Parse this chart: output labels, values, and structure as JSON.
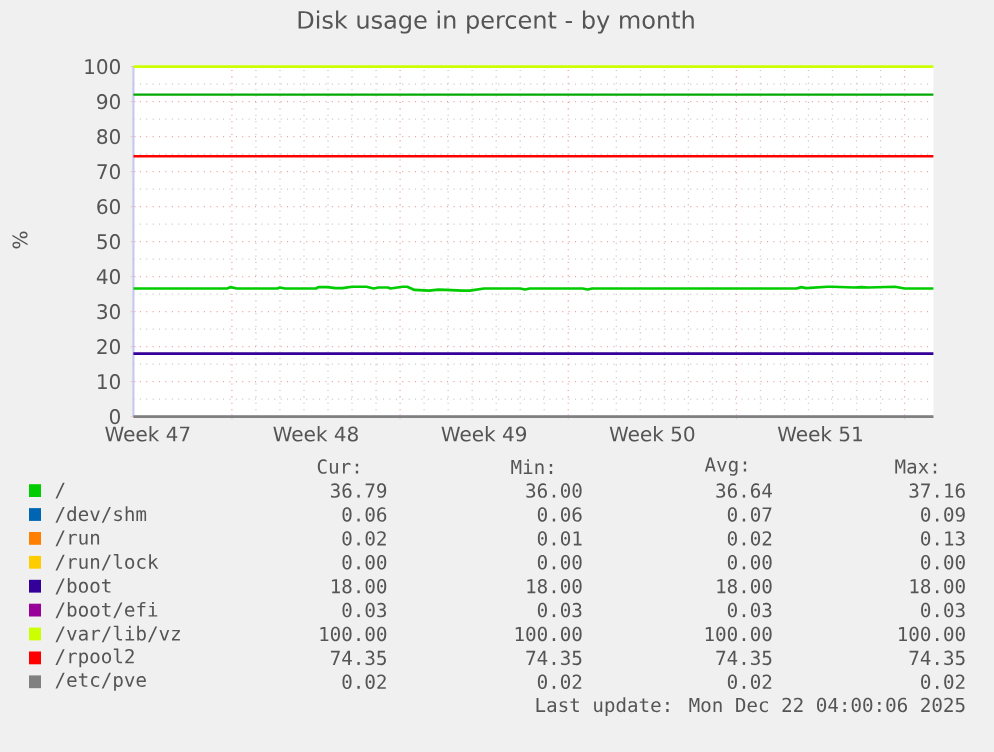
{
  "chart_data": {
    "type": "line",
    "title": "Disk usage in percent - by month",
    "ylabel": "%",
    "xlim": [
      "2025-11-19T21:36",
      "2025-12-23T04:48"
    ],
    "ylim": [
      0,
      100
    ],
    "xticks": [
      {
        "value": "2025-11-20T12:00",
        "label": "Week 47"
      },
      {
        "value": "2025-11-24",
        "label": null
      },
      {
        "value": "2025-11-27T12:00",
        "label": "Week 48"
      },
      {
        "value": "2025-12-01",
        "label": null
      },
      {
        "value": "2025-12-04T12:00",
        "label": "Week 49"
      },
      {
        "value": "2025-12-08",
        "label": null
      },
      {
        "value": "2025-12-11T12:00",
        "label": "Week 50"
      },
      {
        "value": "2025-12-15",
        "label": null
      },
      {
        "value": "2025-12-18T12:00",
        "label": "Week 51"
      },
      {
        "value": "2025-12-22",
        "label": null
      }
    ],
    "yticks": [
      0,
      10,
      20,
      30,
      40,
      50,
      60,
      70,
      80,
      90,
      100
    ],
    "grid": true,
    "legend": "bottom",
    "series": [
      {
        "name": "/",
        "color": "#00cc00",
        "x": [
          "2025-11-19T21:36",
          "2025-11-23T19:12",
          "2025-11-23T22:48",
          "2025-11-24T04:48",
          "2025-11-25T21:36",
          "2025-11-26T00:00",
          "2025-11-26T04:48",
          "2025-11-27T12:00",
          "2025-11-27T14:24",
          "2025-11-28T00:00",
          "2025-11-28T07:12",
          "2025-11-28T14:24",
          "2025-11-29T00:00",
          "2025-11-29T14:24",
          "2025-11-29T21:36",
          "2025-11-30T02:24",
          "2025-11-30T12:00",
          "2025-11-30T14:24",
          "2025-12-01T02:24",
          "2025-12-01T07:12",
          "2025-12-01T14:24",
          "2025-12-02T04:48",
          "2025-12-02T14:24",
          "2025-12-02T21:36",
          "2025-12-03T14:24",
          "2025-12-03T21:36",
          "2025-12-04T12:00",
          "2025-12-06T00:00",
          "2025-12-06T04:48",
          "2025-12-06T09:36",
          "2025-12-08T14:24",
          "2025-12-08T19:12",
          "2025-12-09T00:00",
          "2025-12-17T12:00",
          "2025-12-17T16:48",
          "2025-12-17T21:36",
          "2025-12-18T19:12",
          "2025-12-19T00:00",
          "2025-12-19T21:36",
          "2025-12-20T04:48",
          "2025-12-20T12:00",
          "2025-12-21T14:24",
          "2025-12-22T00:00",
          "2025-12-23T04:48"
        ],
        "values": [
          36.6,
          36.6,
          37.0,
          36.6,
          36.6,
          36.9,
          36.6,
          36.6,
          37.0,
          37.0,
          36.7,
          36.7,
          37.1,
          37.1,
          36.6,
          36.9,
          36.9,
          36.6,
          37.1,
          37.1,
          36.2,
          36.0,
          36.3,
          36.2,
          36.0,
          36.0,
          36.6,
          36.6,
          36.3,
          36.6,
          36.6,
          36.3,
          36.6,
          36.6,
          37.0,
          36.7,
          37.1,
          37.1,
          36.9,
          37.0,
          36.9,
          37.1,
          36.6,
          36.6
        ]
      },
      {
        "name": "/dev/shm",
        "color": "#0066b3",
        "values": [
          null
        ]
      },
      {
        "name": "/run",
        "color": "#ff8000",
        "values": [
          null
        ]
      },
      {
        "name": "/run/lock",
        "color": "#ffcc00",
        "values": [
          null
        ]
      },
      {
        "name": "/boot",
        "color": "#330099",
        "x": [
          "2025-11-19T21:36",
          "2025-12-23T04:48"
        ],
        "values": [
          18,
          18
        ]
      },
      {
        "name": "/boot/efi",
        "color": "#990099",
        "values": [
          null
        ]
      },
      {
        "name": "/var/lib/vz",
        "color": "#ccff00",
        "x": [
          "2025-11-19T21:36",
          "2025-12-23T04:48"
        ],
        "values": [
          100,
          100
        ]
      },
      {
        "name": "/rpool2",
        "color": "#ff0000",
        "x": [
          "2025-11-19T21:36",
          "2025-12-23T04:48"
        ],
        "values": [
          74.4,
          74.4
        ]
      },
      {
        "name": "/etc/pve",
        "color": "#808080",
        "x": [
          "2025-11-19T21:36",
          "2025-12-23T04:48"
        ],
        "values": [
          0,
          0
        ]
      }
    ],
    "ref_lines": [
      {
        "axis": "y",
        "value": 92,
        "color": "#00aa00"
      }
    ],
    "annotations": [
      "Cur:",
      "Min:",
      "Avg:",
      "Max:",
      "36.79",
      "36.00",
      "36.64",
      "37.16",
      "0.06",
      "0.06",
      "0.07",
      "0.09",
      "0.02",
      "0.01",
      "0.02",
      "0.13",
      "0.00",
      "0.00",
      "0.00",
      "0.00",
      "18.00",
      "18.00",
      "18.00",
      "18.00",
      "0.03",
      "0.03",
      "0.03",
      "0.03",
      "100.00",
      "100.00",
      "100.00",
      "100.00",
      "74.35",
      "74.35",
      "74.35",
      "74.35",
      "0.02",
      "0.02",
      "0.02",
      "0.02",
      "Last update: Mon Dec 22 04:00:06 2025"
    ]
  }
}
